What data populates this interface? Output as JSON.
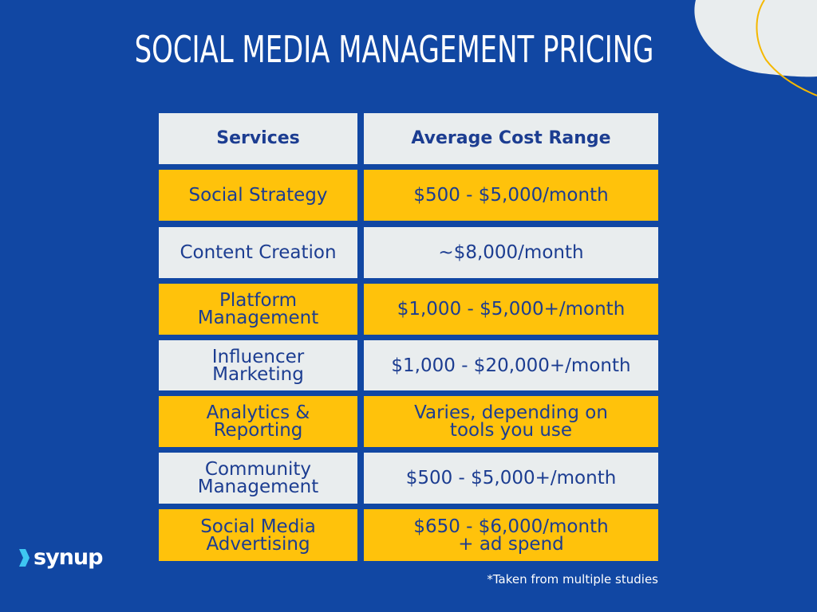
{
  "title": "SOCIAL MEDIA MANAGEMENT PRICING",
  "table": {
    "headers": [
      "Services",
      "Average Cost Range"
    ],
    "rows": [
      {
        "service": "Social Strategy",
        "cost": "$500 - $5,000/month"
      },
      {
        "service": "Content Creation",
        "cost": "~$8,000/month"
      },
      {
        "service": "Platform\nManagement",
        "cost": "$1,000 - $5,000+/month"
      },
      {
        "service": "Influencer\nMarketing",
        "cost": "$1,000 - $20,000+/month"
      },
      {
        "service": "Analytics &\nReporting",
        "cost": "Varies, depending on\ntools you use"
      },
      {
        "service": "Community\nManagement",
        "cost": "$500 - $5,000+/month"
      },
      {
        "service": "Social Media\nAdvertising",
        "cost": "$650 - $6,000/month\n+ ad spend"
      }
    ]
  },
  "logo": {
    "text": "synup"
  },
  "footnote": "*Taken from multiple studies",
  "colors": {
    "background": "#1147a3",
    "yellow": "#ffc20b",
    "gray": "#e9edee",
    "text": "#1c3d91",
    "accent_line": "#f5b800"
  }
}
